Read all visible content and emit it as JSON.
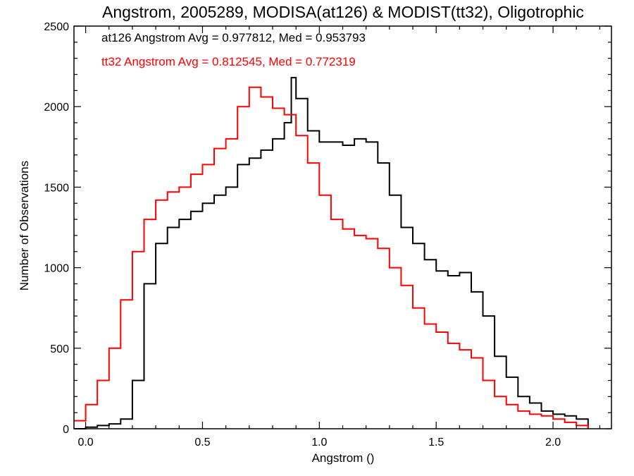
{
  "chart_data": {
    "type": "line",
    "title": "Angstrom, 2005289, MODISA(at126) & MODIST(tt32), Oligotrophic",
    "xlabel": "Angstrom ()",
    "ylabel": "Number of Observations",
    "xlim": [
      -0.05,
      2.25
    ],
    "ylim": [
      0,
      2500
    ],
    "x_ticks": [
      "0.0",
      "0.5",
      "1.0",
      "1.5",
      "2.0"
    ],
    "y_ticks": [
      "0",
      "500",
      "1000",
      "1500",
      "2000",
      "2500"
    ],
    "x_tick_values": [
      0.0,
      0.5,
      1.0,
      1.5,
      2.0
    ],
    "y_tick_values": [
      0,
      500,
      1000,
      1500,
      2000,
      2500
    ],
    "grid": false,
    "legend_position": "top-left",
    "series": [
      {
        "name": "at126",
        "legend_text": "at126 Angstrom Avg = 0.977812, Med = 0.953793",
        "color": "#000000",
        "x": [
          -0.05,
          0.0,
          0.05,
          0.1,
          0.15,
          0.2,
          0.25,
          0.3,
          0.35,
          0.4,
          0.45,
          0.5,
          0.55,
          0.6,
          0.65,
          0.7,
          0.75,
          0.8,
          0.85,
          0.88,
          0.9,
          0.95,
          1.0,
          1.05,
          1.1,
          1.15,
          1.2,
          1.25,
          1.3,
          1.35,
          1.4,
          1.45,
          1.5,
          1.55,
          1.6,
          1.65,
          1.7,
          1.75,
          1.8,
          1.85,
          1.9,
          1.95,
          2.0,
          2.05,
          2.1,
          2.15
        ],
        "y": [
          0,
          10,
          20,
          30,
          60,
          300,
          900,
          1150,
          1250,
          1300,
          1350,
          1400,
          1450,
          1500,
          1640,
          1680,
          1730,
          1800,
          1900,
          2180,
          2050,
          1850,
          1780,
          1780,
          1760,
          1800,
          1780,
          1650,
          1450,
          1250,
          1150,
          1050,
          980,
          950,
          970,
          850,
          700,
          450,
          320,
          200,
          160,
          110,
          90,
          80,
          60,
          0
        ]
      },
      {
        "name": "tt32",
        "legend_text": "tt32 Angstrom Avg = 0.812545, Med = 0.772319",
        "color": "#ff0000",
        "x": [
          -0.05,
          0.0,
          0.05,
          0.1,
          0.15,
          0.2,
          0.25,
          0.3,
          0.35,
          0.4,
          0.45,
          0.5,
          0.55,
          0.6,
          0.65,
          0.7,
          0.75,
          0.8,
          0.85,
          0.9,
          0.95,
          1.0,
          1.05,
          1.1,
          1.15,
          1.2,
          1.25,
          1.3,
          1.35,
          1.4,
          1.45,
          1.5,
          1.55,
          1.6,
          1.65,
          1.7,
          1.75,
          1.8,
          1.85,
          1.9,
          1.95,
          2.0,
          2.05,
          2.1,
          2.15
        ],
        "y": [
          50,
          150,
          300,
          500,
          800,
          1100,
          1300,
          1420,
          1470,
          1500,
          1580,
          1640,
          1740,
          1800,
          2000,
          2120,
          2060,
          1990,
          1950,
          1820,
          1650,
          1450,
          1300,
          1240,
          1200,
          1180,
          1120,
          1000,
          890,
          750,
          650,
          600,
          530,
          490,
          440,
          300,
          200,
          150,
          110,
          90,
          80,
          60,
          40,
          20,
          0
        ]
      }
    ]
  }
}
